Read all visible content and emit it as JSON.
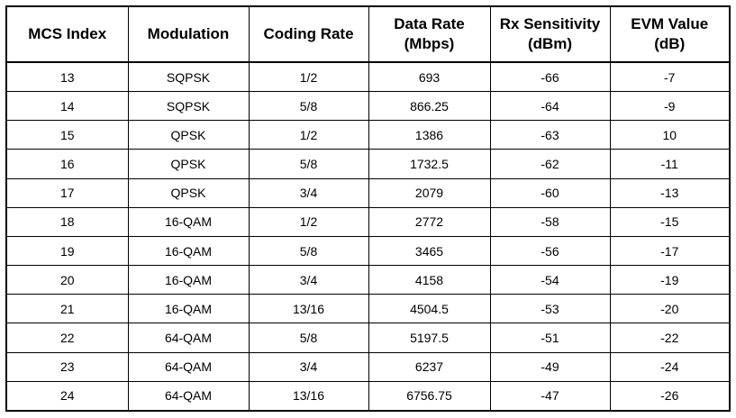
{
  "table": {
    "headers": [
      {
        "lines": [
          "MCS Index"
        ]
      },
      {
        "lines": [
          "Modulation"
        ]
      },
      {
        "lines": [
          "Coding Rate"
        ]
      },
      {
        "lines": [
          "Data Rate",
          "(Mbps)"
        ]
      },
      {
        "lines": [
          "Rx Sensitivity",
          "(dBm)"
        ]
      },
      {
        "lines": [
          "EVM Value",
          "(dB)"
        ]
      }
    ],
    "rows": [
      [
        "13",
        "SQPSK",
        "1/2",
        "693",
        "-66",
        "-7"
      ],
      [
        "14",
        "SQPSK",
        "5/8",
        "866.25",
        "-64",
        "-9"
      ],
      [
        "15",
        "QPSK",
        "1/2",
        "1386",
        "-63",
        "10"
      ],
      [
        "16",
        "QPSK",
        "5/8",
        "1732.5",
        "-62",
        "-11"
      ],
      [
        "17",
        "QPSK",
        "3/4",
        "2079",
        "-60",
        "-13"
      ],
      [
        "18",
        "16-QAM",
        "1/2",
        "2772",
        "-58",
        "-15"
      ],
      [
        "19",
        "16-QAM",
        "5/8",
        "3465",
        "-56",
        "-17"
      ],
      [
        "20",
        "16-QAM",
        "3/4",
        "4158",
        "-54",
        "-19"
      ],
      [
        "21",
        "16-QAM",
        "13/16",
        "4504.5",
        "-53",
        "-20"
      ],
      [
        "22",
        "64-QAM",
        "5/8",
        "5197.5",
        "-51",
        "-22"
      ],
      [
        "23",
        "64-QAM",
        "3/4",
        "6237",
        "-49",
        "-24"
      ],
      [
        "24",
        "64-QAM",
        "13/16",
        "6756.75",
        "-47",
        "-26"
      ]
    ]
  }
}
